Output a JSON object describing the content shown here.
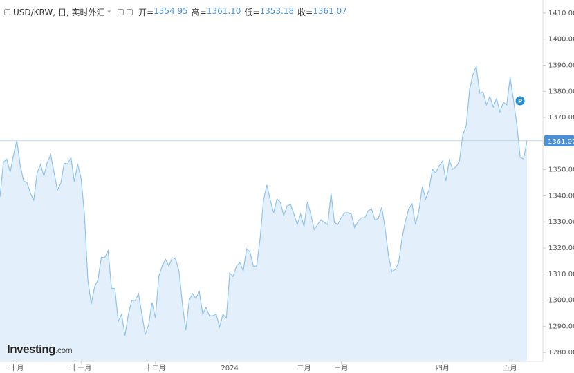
{
  "chart_data": {
    "type": "area",
    "title": "USD/KRW, 日, 实时外汇",
    "ohlc": [
      {
        "label": "开=",
        "value": "1354.95"
      },
      {
        "label": "高=",
        "value": "1361.10"
      },
      {
        "label": "低=",
        "value": "1353.18"
      },
      {
        "label": "收=",
        "value": "1361.07"
      }
    ],
    "watermark": "Investing",
    "watermark_suffix": ".com",
    "badge": "P",
    "last_label": "1361.07",
    "color": "#8ec3ea",
    "fill": "#e3f0fb",
    "ylim": [
      1276.6,
      1415
    ],
    "yticks": [
      {
        "value": 1280,
        "label": "1280.00"
      },
      {
        "value": 1290,
        "label": "1290.00"
      },
      {
        "value": 1300,
        "label": "1300.00"
      },
      {
        "value": 1310,
        "label": "1310.00"
      },
      {
        "value": 1320,
        "label": "1320.00"
      },
      {
        "value": 1330,
        "label": "1330.00"
      },
      {
        "value": 1340,
        "label": "1340.00"
      },
      {
        "value": 1350,
        "label": "1350.00"
      },
      {
        "value": 1360,
        "label": "1360.00"
      },
      {
        "value": 1370,
        "label": "1370.00"
      },
      {
        "value": 1380,
        "label": "1380.00"
      },
      {
        "value": 1390,
        "label": "1390.00"
      },
      {
        "value": 1400,
        "label": "1400.00"
      },
      {
        "value": 1410,
        "label": "1410.00"
      }
    ],
    "categories": [
      null,
      null,
      null,
      null,
      null,
      "十月",
      null,
      null,
      null,
      null,
      null,
      null,
      null,
      null,
      null,
      null,
      null,
      null,
      null,
      null,
      null,
      null,
      null,
      null,
      "十一月",
      null,
      null,
      null,
      null,
      null,
      null,
      null,
      null,
      null,
      null,
      null,
      null,
      null,
      null,
      null,
      null,
      null,
      null,
      null,
      null,
      null,
      "十二月",
      null,
      null,
      null,
      null,
      null,
      null,
      null,
      null,
      null,
      null,
      null,
      null,
      null,
      null,
      null,
      null,
      null,
      null,
      null,
      null,
      null,
      "2024",
      null,
      null,
      null,
      null,
      null,
      null,
      null,
      null,
      null,
      null,
      null,
      null,
      null,
      null,
      null,
      null,
      null,
      null,
      null,
      null,
      null,
      "二月",
      null,
      null,
      null,
      null,
      null,
      null,
      null,
      null,
      null,
      null,
      "三月",
      null,
      null,
      null,
      null,
      null,
      null,
      null,
      null,
      null,
      null,
      null,
      null,
      null,
      null,
      null,
      null,
      null,
      null,
      null,
      null,
      null,
      null,
      null,
      null,
      null,
      null,
      null,
      null,
      null,
      "四月",
      null,
      null,
      null,
      null,
      null,
      null,
      null,
      null,
      null,
      null,
      null,
      null,
      null,
      null,
      null,
      null,
      null,
      null,
      null,
      "五月",
      null,
      null,
      null,
      null,
      null
    ],
    "values": [
      1339.6,
      1352.8,
      1354,
      1349,
      1355.5,
      1361.3,
      1351.5,
      1345.7,
      1345,
      1341,
      1338.3,
      1348.8,
      1352,
      1347.5,
      1352.8,
      1355.7,
      1348.8,
      1342.2,
      1344.8,
      1352.5,
      1352.2,
      1354.7,
      1345.4,
      1352.2,
      1346.7,
      1333,
      1307.8,
      1298.5,
      1305.2,
      1307.8,
      1316.5,
      1316.3,
      1319,
      1304.6,
      1304.4,
      1291.9,
      1294.6,
      1286.4,
      1294.6,
      1299.9,
      1299.9,
      1302.5,
      1294.6,
      1286.9,
      1290.6,
      1299.1,
      1293.2,
      1309.1,
      1313.1,
      1315.7,
      1313.1,
      1316.3,
      1315.7,
      1311,
      1298.5,
      1288.5,
      1299.9,
      1302.5,
      1300.7,
      1303.3,
      1294.6,
      1297.2,
      1294,
      1294,
      1294.6,
      1289.8,
      1294.6,
      1293.2,
      1310.4,
      1309.1,
      1313.1,
      1314.4,
      1311.2,
      1319.7,
      1318.4,
      1313.1,
      1313.1,
      1323.7,
      1338.3,
      1344.1,
      1338.3,
      1333.5,
      1338.8,
      1337.5,
      1332.4,
      1336.1,
      1336.7,
      1333,
      1329,
      1333,
      1328.2,
      1337.7,
      1333,
      1327.1,
      1329,
      1330.8,
      1329.8,
      1329,
      1340.9,
      1329.8,
      1329,
      1331.6,
      1333.5,
      1333.5,
      1333,
      1327.7,
      1330.3,
      1331.6,
      1331.6,
      1334.3,
      1335,
      1330.8,
      1331.3,
      1335.6,
      1327.7,
      1317.1,
      1311,
      1311.8,
      1314.4,
      1323.7,
      1330.3,
      1335,
      1336.9,
      1329,
      1334.3,
      1343.5,
      1338.8,
      1342.2,
      1350.2,
      1348.8,
      1351.5,
      1353.3,
      1345.7,
      1353.6,
      1350.2,
      1351,
      1353.3,
      1363.4,
      1366.6,
      1380.6,
      1386.4,
      1389.6,
      1379.3,
      1379.8,
      1374.8,
      1378,
      1374,
      1377.2,
      1372.1,
      1375.8,
      1374.8,
      1385.4,
      1376.6,
      1367.4,
      1354.7,
      1354.1,
      1361.07
    ]
  }
}
